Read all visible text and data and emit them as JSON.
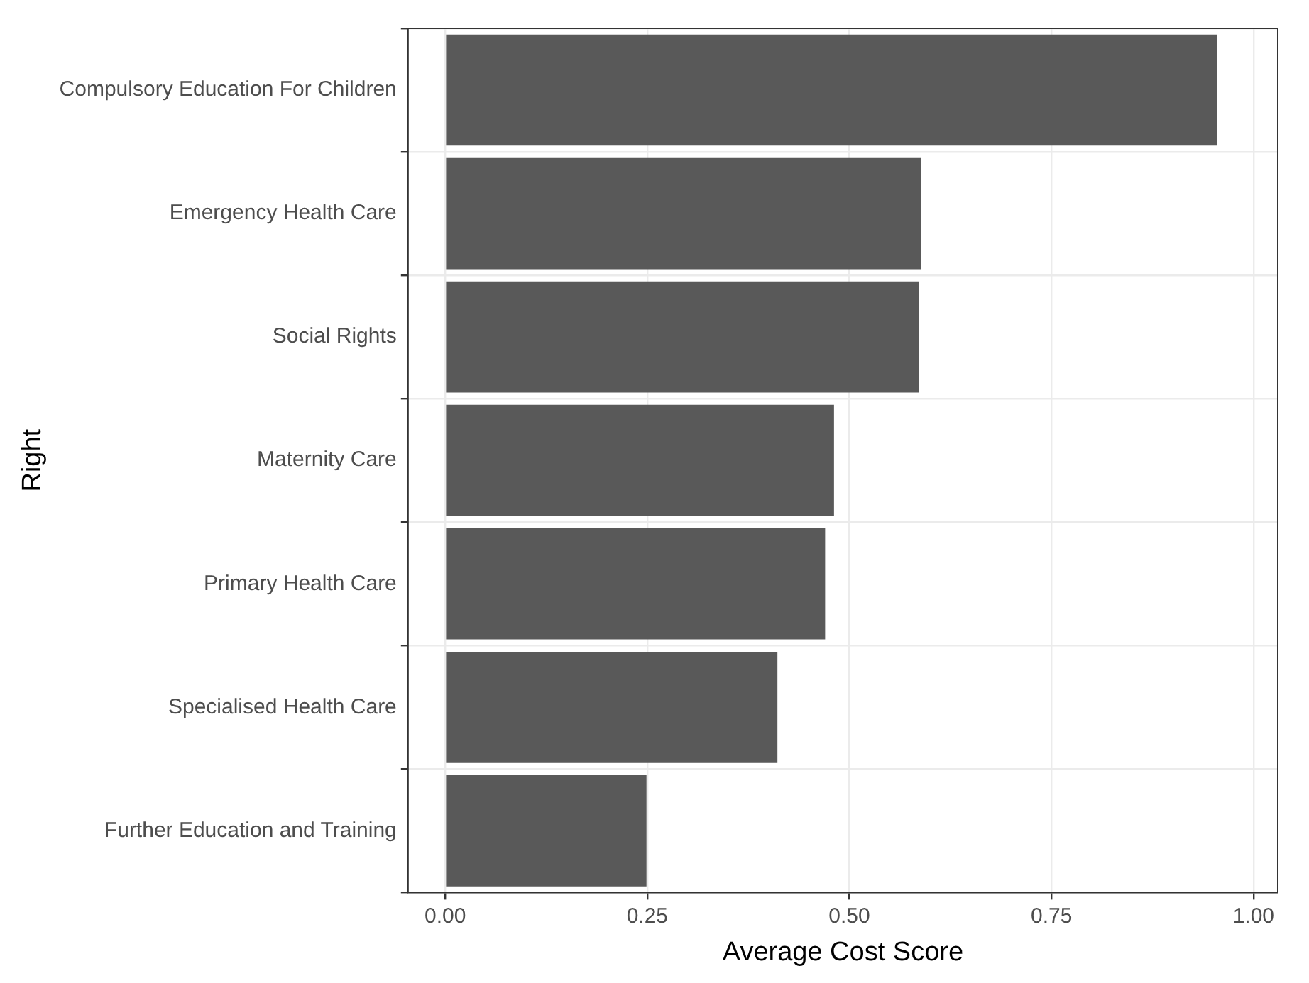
{
  "chart_data": {
    "type": "bar",
    "orientation": "horizontal",
    "xlabel": "Average Cost Score",
    "ylabel": "Right",
    "categories": [
      "Compulsory Education For Children",
      "Emergency Health Care",
      "Social Rights",
      "Maternity Care",
      "Primary Health Care",
      "Specialised Health Care",
      "Further Education and Training"
    ],
    "values": [
      0.955,
      0.589,
      0.586,
      0.481,
      0.47,
      0.411,
      0.249
    ],
    "color": "#595959",
    "xlim": [
      -0.046,
      1.03
    ],
    "xticks": [
      {
        "value": 0,
        "label": "0.00"
      },
      {
        "value": 0.25,
        "label": "0.25"
      },
      {
        "value": 0.5,
        "label": "0.50"
      },
      {
        "value": 0.75,
        "label": "0.75"
      },
      {
        "value": 1,
        "label": "1.00"
      }
    ],
    "grid": true,
    "legend": false
  }
}
